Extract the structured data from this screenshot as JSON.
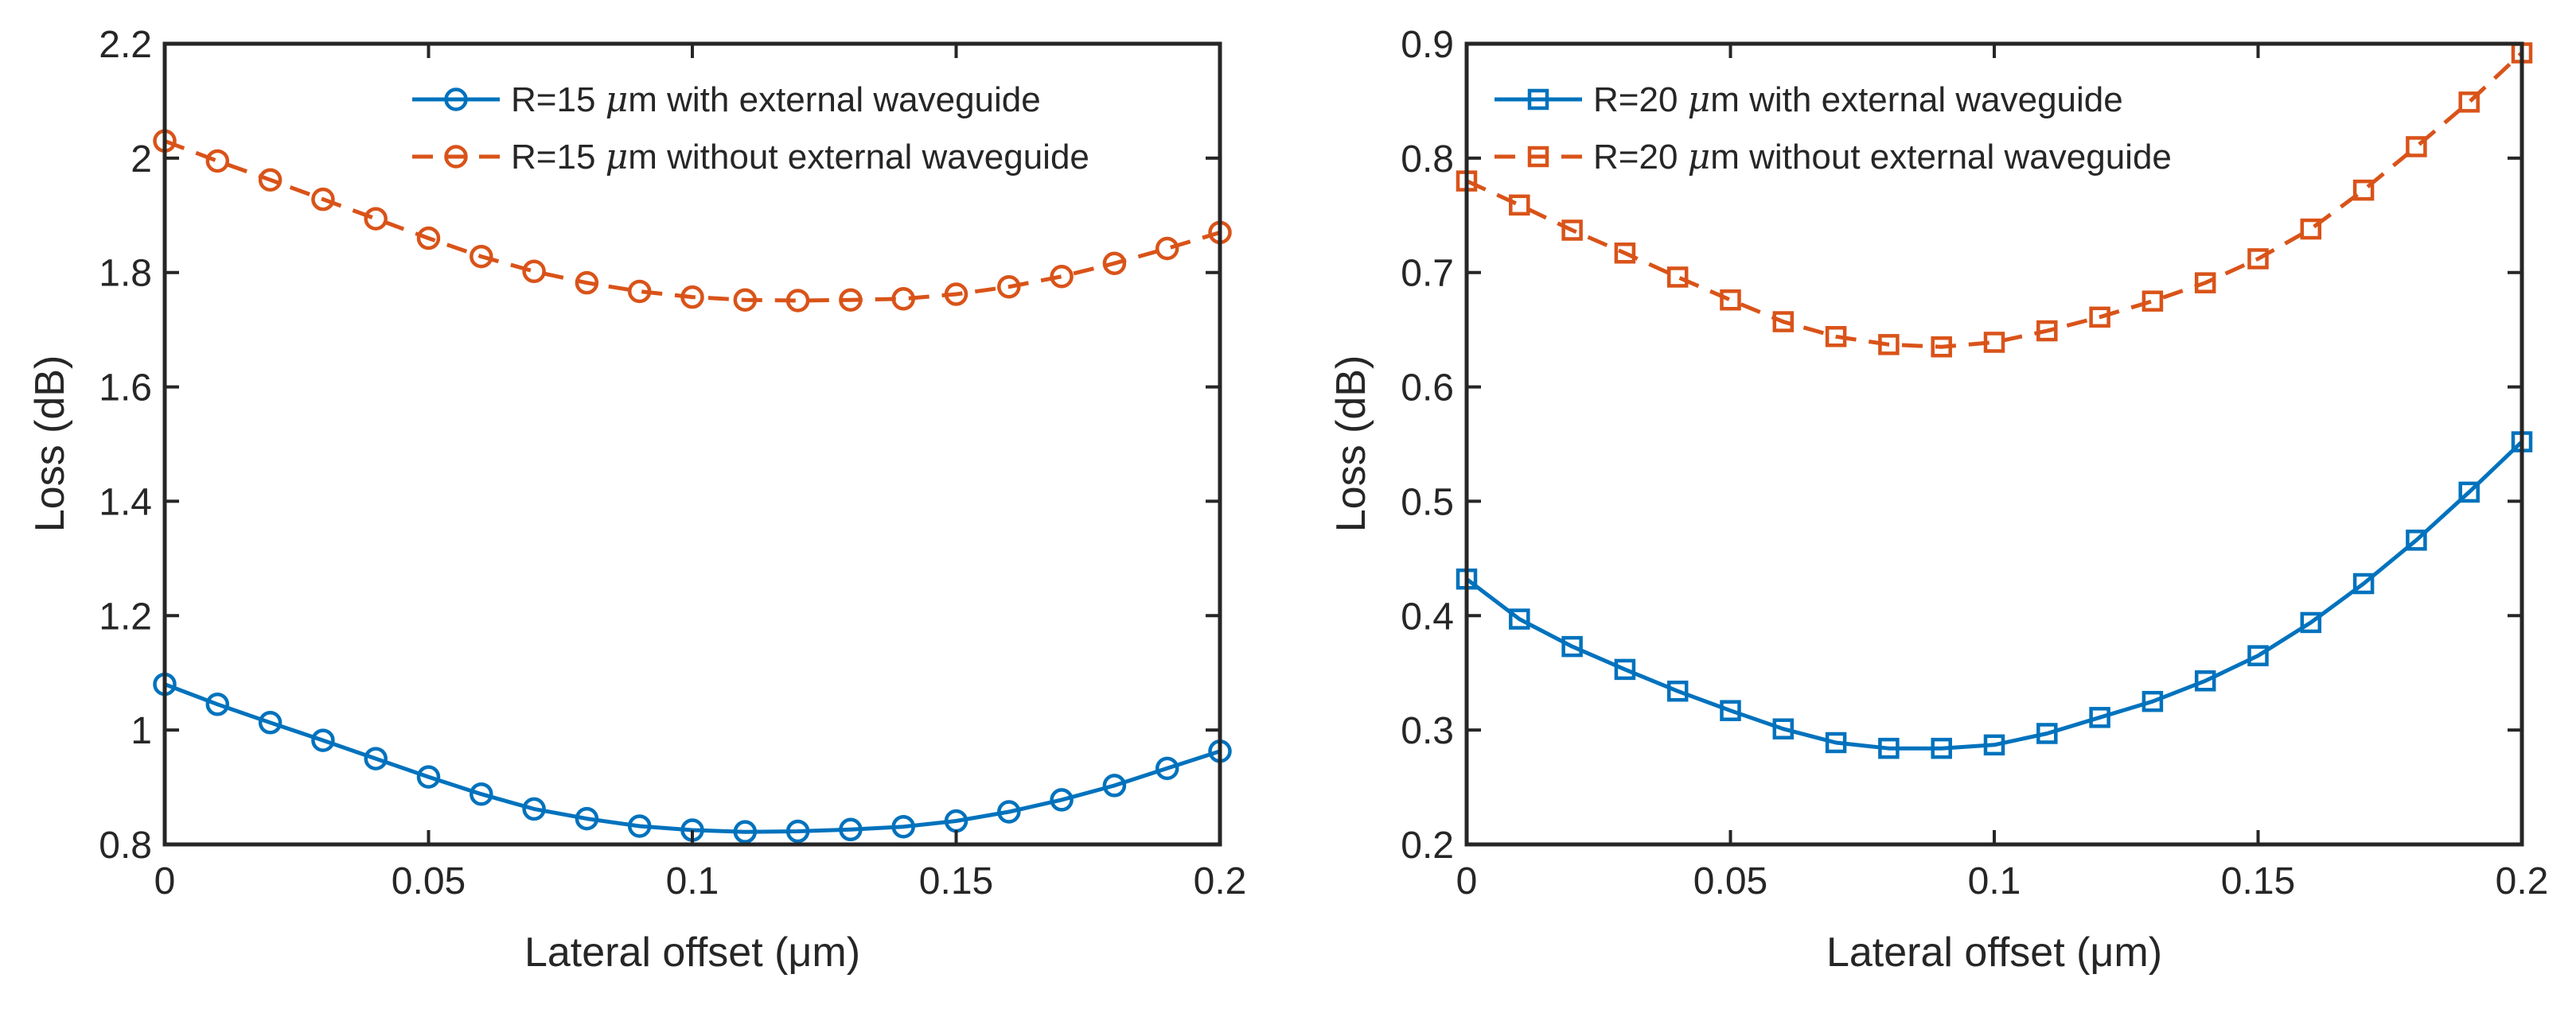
{
  "colors": {
    "series_with": "#0072BD",
    "series_without": "#D95319",
    "axis": "#262626",
    "background": "#FFFFFF"
  },
  "chart_data": [
    {
      "type": "line",
      "title": "",
      "xlabel": "Lateral offset (μm)",
      "ylabel": "Loss (dB)",
      "xlim": [
        0,
        0.2
      ],
      "ylim": [
        0.8,
        2.2
      ],
      "xticks": [
        0,
        0.05,
        0.1,
        0.15,
        0.2
      ],
      "xtick_labels": [
        "0",
        "0.05",
        "0.1",
        "0.15",
        "0.2"
      ],
      "yticks": [
        0.8,
        1.0,
        1.2,
        1.4,
        1.6,
        1.8,
        2.0,
        2.2
      ],
      "ytick_labels": [
        "0.8",
        "1",
        "1.2",
        "1.4",
        "1.6",
        "1.8",
        "2",
        "2.2"
      ],
      "grid": false,
      "legend_position": "top-right",
      "x": [
        0,
        0.01,
        0.02,
        0.03,
        0.04,
        0.05,
        0.06,
        0.07,
        0.08,
        0.09,
        0.1,
        0.11,
        0.12,
        0.13,
        0.14,
        0.15,
        0.16,
        0.17,
        0.18,
        0.19,
        0.2
      ],
      "series": [
        {
          "name": "R=15 μm with external waveguide",
          "label_prefix": "R=15 ",
          "label_unit_symbol": "μ",
          "label_suffix": "m with external waveguide",
          "color": "#0072BD",
          "line_style": "solid",
          "marker": "circle",
          "values": [
            1.08,
            1.045,
            1.013,
            0.982,
            0.95,
            0.918,
            0.888,
            0.862,
            0.845,
            0.832,
            0.825,
            0.822,
            0.823,
            0.826,
            0.831,
            0.841,
            0.857,
            0.878,
            0.903,
            0.933,
            0.963
          ]
        },
        {
          "name": "R=15 μm without external waveguide",
          "label_prefix": "R=15 ",
          "label_unit_symbol": "μ",
          "label_suffix": "m without external waveguide",
          "color": "#D95319",
          "line_style": "dashed",
          "marker": "circle",
          "values": [
            2.03,
            1.995,
            1.962,
            1.928,
            1.894,
            1.86,
            1.828,
            1.802,
            1.782,
            1.767,
            1.757,
            1.752,
            1.751,
            1.752,
            1.754,
            1.762,
            1.775,
            1.793,
            1.816,
            1.842,
            1.87
          ]
        }
      ]
    },
    {
      "type": "line",
      "title": "",
      "xlabel": "Lateral offset (μm)",
      "ylabel": "Loss (dB)",
      "xlim": [
        0,
        0.2
      ],
      "ylim": [
        0.2,
        0.9
      ],
      "xticks": [
        0,
        0.05,
        0.1,
        0.15,
        0.2
      ],
      "xtick_labels": [
        "0",
        "0.05",
        "0.1",
        "0.15",
        "0.2"
      ],
      "yticks": [
        0.2,
        0.3,
        0.4,
        0.5,
        0.6,
        0.7,
        0.8,
        0.9
      ],
      "ytick_labels": [
        "0.2",
        "0.3",
        "0.4",
        "0.5",
        "0.6",
        "0.7",
        "0.8",
        "0.9"
      ],
      "grid": false,
      "legend_position": "top-left",
      "x": [
        0,
        0.01,
        0.02,
        0.03,
        0.04,
        0.05,
        0.06,
        0.07,
        0.08,
        0.09,
        0.1,
        0.11,
        0.12,
        0.13,
        0.14,
        0.15,
        0.16,
        0.17,
        0.18,
        0.19,
        0.2
      ],
      "series": [
        {
          "name": "R=20 μm with external waveguide",
          "label_prefix": "R=20 ",
          "label_unit_symbol": "μ",
          "label_suffix": "m with external waveguide",
          "color": "#0072BD",
          "line_style": "solid",
          "marker": "square",
          "values": [
            0.432,
            0.397,
            0.373,
            0.353,
            0.334,
            0.317,
            0.301,
            0.289,
            0.284,
            0.284,
            0.287,
            0.297,
            0.311,
            0.325,
            0.343,
            0.365,
            0.394,
            0.428,
            0.466,
            0.508,
            0.552
          ]
        },
        {
          "name": "R=20 μm without external waveguide",
          "label_prefix": "R=20 ",
          "label_unit_symbol": "μ",
          "label_suffix": "m without external waveguide",
          "color": "#D95319",
          "line_style": "dashed",
          "marker": "square",
          "values": [
            0.78,
            0.759,
            0.737,
            0.717,
            0.696,
            0.676,
            0.657,
            0.644,
            0.637,
            0.635,
            0.639,
            0.649,
            0.661,
            0.675,
            0.691,
            0.712,
            0.738,
            0.772,
            0.81,
            0.849,
            0.892
          ]
        }
      ]
    }
  ]
}
